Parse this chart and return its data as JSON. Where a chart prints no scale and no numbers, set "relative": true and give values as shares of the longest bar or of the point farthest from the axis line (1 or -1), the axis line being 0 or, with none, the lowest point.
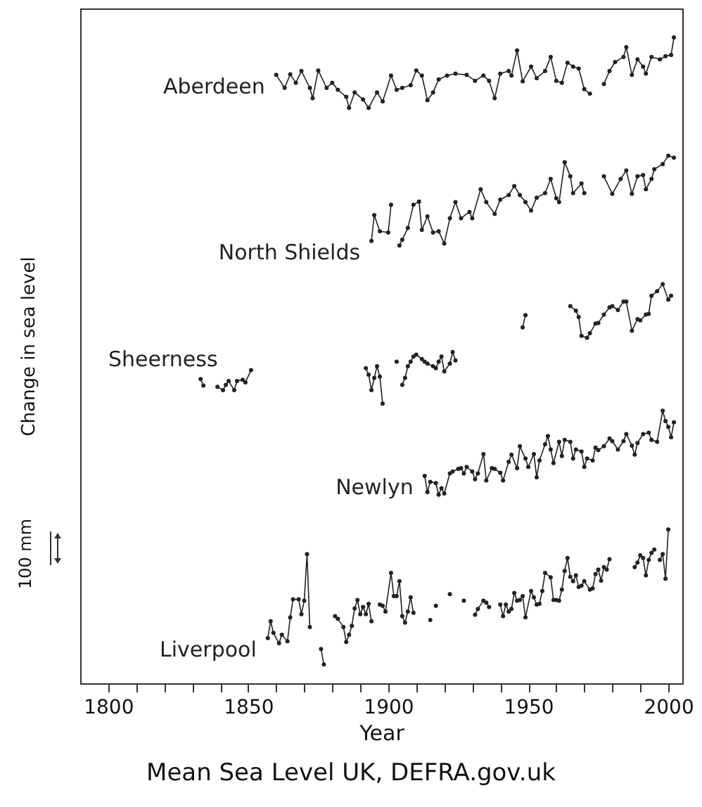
{
  "chart_data": {
    "type": "line",
    "relative": true,
    "xlabel": "Year",
    "ylabel": "Change in sea level",
    "annotations": [
      "100 mm",
      "Mean Sea Level UK, DEFRA.gov.uk"
    ],
    "xlim": [
      1790,
      2005
    ],
    "xticks": [
      1800,
      {
        "value": 1810,
        "label": null
      },
      {
        "value": 1820,
        "label": null
      },
      {
        "value": 1830,
        "label": null
      },
      {
        "value": 1840,
        "label": null
      },
      1850,
      {
        "value": 1860,
        "label": null
      },
      {
        "value": 1870,
        "label": null
      },
      {
        "value": 1880,
        "label": null
      },
      {
        "value": 1890,
        "label": null
      },
      1900,
      {
        "value": 1910,
        "label": null
      },
      {
        "value": 1920,
        "label": null
      },
      {
        "value": 1930,
        "label": null
      },
      {
        "value": 1940,
        "label": null
      },
      1950,
      {
        "value": 1960,
        "label": null
      },
      {
        "value": 1970,
        "label": null
      },
      {
        "value": 1980,
        "label": null
      },
      {
        "value": 1990,
        "label": null
      },
      2000
    ],
    "grid": false,
    "marker": "circle",
    "line_style": "solid",
    "series": [
      {
        "name": "Aberdeen",
        "color": "#222222",
        "x": [
          1860,
          1863,
          1865,
          1867,
          1869,
          1872,
          1873,
          1875,
          1878,
          1880,
          1882,
          1885,
          1886,
          1888,
          1891,
          1893,
          1896,
          1898,
          1901,
          1903,
          1905,
          1908,
          1910,
          1912,
          1914,
          1916,
          1918,
          1921,
          1924,
          1928,
          1931,
          1934,
          1936,
          1938,
          1940,
          1943,
          1944,
          1946,
          1948,
          1951,
          1953,
          1956,
          1958,
          1960,
          1962,
          1964,
          1966,
          1968,
          1970,
          1972,
          1976,
          1977,
          1979,
          1981,
          1984,
          1985,
          1987,
          1989,
          1991,
          1992,
          1994,
          1997,
          1999,
          2001,
          2002
        ],
        "values": [
          0.942,
          0.922,
          0.943,
          0.93,
          0.948,
          0.922,
          0.906,
          0.949,
          0.922,
          0.93,
          0.919,
          0.908,
          0.891,
          0.915,
          0.904,
          0.891,
          0.915,
          0.901,
          0.941,
          0.919,
          0.922,
          0.926,
          0.949,
          0.941,
          0.903,
          0.915,
          0.935,
          0.941,
          0.944,
          0.942,
          0.933,
          0.941,
          0.933,
          0.906,
          0.944,
          0.948,
          0.941,
          0.98,
          0.932,
          0.955,
          0.937,
          0.948,
          0.97,
          0.933,
          0.93,
          0.961,
          0.955,
          0.952,
          0.92,
          0.913,
          null,
          0.928,
          0.948,
          0.962,
          0.97,
          0.985,
          0.942,
          0.966,
          0.955,
          0.944,
          0.97,
          0.966,
          0.971,
          0.973,
          1
        ]
      },
      {
        "name": "North Shields",
        "color": "#222222",
        "x": [
          1894,
          1895,
          1897,
          1900,
          1901,
          1902,
          1904,
          1905,
          1907,
          1909,
          1911,
          1912,
          1914,
          1916,
          1918,
          1920,
          1922,
          1924,
          1926,
          1929,
          1930,
          1933,
          1935,
          1938,
          1940,
          1943,
          1945,
          1947,
          1949,
          1951,
          1953,
          1956,
          1958,
          1960,
          1961,
          1963,
          1965,
          1966,
          1969,
          1970,
          1975,
          1977,
          1980,
          1983,
          1985,
          1987,
          1989,
          1991,
          1992,
          1994,
          1995,
          1998,
          2000,
          2002
        ],
        "values": [
          0.685,
          0.725,
          0.7,
          0.698,
          0.741,
          null,
          0.678,
          0.687,
          0.705,
          0.741,
          0.746,
          0.702,
          0.723,
          0.698,
          0.7,
          0.681,
          0.72,
          0.745,
          0.72,
          0.73,
          0.72,
          0.765,
          0.745,
          0.727,
          0.749,
          0.756,
          0.77,
          0.756,
          0.745,
          0.732,
          0.752,
          0.759,
          0.781,
          0.751,
          0.745,
          0.807,
          0.785,
          0.759,
          0.774,
          0.759,
          null,
          0.785,
          0.758,
          0.781,
          0.794,
          0.758,
          0.785,
          0.787,
          0.765,
          0.781,
          0.796,
          0.804,
          0.817,
          0.814
        ]
      },
      {
        "name": "Sheerness",
        "color": "#222222",
        "x": [
          1833,
          1834,
          1836,
          1839,
          1841,
          1842,
          1843,
          1845,
          1846,
          1848,
          1849,
          1851,
          1870,
          1892,
          1893,
          1894,
          1895,
          1896,
          1897,
          1898,
          1900,
          1903,
          1904,
          1905,
          1906,
          1907,
          1908,
          1909,
          1910,
          1912,
          1913,
          1914,
          1916,
          1917,
          1918,
          1919,
          1920,
          1922,
          1923,
          1924,
          1940,
          1948,
          1949,
          1955,
          1965,
          1967,
          1968,
          1969,
          1971,
          1972,
          1974,
          1975,
          1977,
          1979,
          1980,
          1982,
          1984,
          1985,
          1987,
          1989,
          1990,
          1992,
          1993,
          1994,
          1996,
          1998,
          2000,
          2001
        ],
        "values": [
          0.471,
          0.461,
          null,
          0.459,
          0.454,
          0.462,
          0.468,
          0.454,
          0.468,
          0.47,
          0.466,
          0.485,
          null,
          0.488,
          0.478,
          0.454,
          0.473,
          0.491,
          0.475,
          0.433,
          null,
          0.498,
          null,
          0.462,
          0.473,
          0.491,
          0.498,
          0.506,
          0.509,
          0.502,
          0.498,
          0.495,
          0.491,
          0.488,
          0.498,
          0.506,
          0.483,
          0.495,
          0.513,
          0.5,
          null,
          0.551,
          0.57,
          null,
          0.584,
          0.577,
          0.567,
          0.538,
          0.535,
          0.542,
          0.557,
          0.558,
          0.571,
          0.582,
          0.584,
          0.578,
          0.591,
          0.591,
          0.546,
          0.564,
          0.562,
          0.571,
          0.572,
          0.6,
          0.607,
          0.618,
          0.594,
          0.6
        ]
      },
      {
        "name": "Newlyn",
        "color": "#222222",
        "x": [
          1913,
          1914,
          1915,
          1917,
          1918,
          1919,
          1920,
          1922,
          1923,
          1925,
          1926,
          1927,
          1928,
          1930,
          1931,
          1932,
          1934,
          1935,
          1937,
          1938,
          1940,
          1941,
          1943,
          1944,
          1946,
          1947,
          1949,
          1950,
          1952,
          1953,
          1954,
          1956,
          1957,
          1958,
          1959,
          1961,
          1962,
          1963,
          1965,
          1966,
          1967,
          1969,
          1970,
          1971,
          1973,
          1974,
          1975,
          1977,
          1979,
          1980,
          1982,
          1984,
          1985,
          1987,
          1988,
          1989,
          1991,
          1993,
          1994,
          1996,
          1998,
          1999,
          2000,
          2001,
          2002
        ],
        "values": [
          0.321,
          0.296,
          0.312,
          0.31,
          0.292,
          0.302,
          0.294,
          0.325,
          0.328,
          0.332,
          0.333,
          0.325,
          0.335,
          0.328,
          0.316,
          0.325,
          0.355,
          0.314,
          0.333,
          0.332,
          0.326,
          0.314,
          0.343,
          0.354,
          0.333,
          0.367,
          0.348,
          0.335,
          0.355,
          0.319,
          0.345,
          0.37,
          0.383,
          0.362,
          0.341,
          0.374,
          0.352,
          0.377,
          0.374,
          0.348,
          0.362,
          0.359,
          0.335,
          0.348,
          0.345,
          0.365,
          0.361,
          0.367,
          0.379,
          0.375,
          0.362,
          0.375,
          0.386,
          0.368,
          0.354,
          0.372,
          0.386,
          0.388,
          0.377,
          0.374,
          0.422,
          0.406,
          0.397,
          0.381,
          0.404
        ]
      },
      {
        "name": "Liverpool",
        "color": "#222222",
        "x": [
          1857,
          1858,
          1859,
          1861,
          1862,
          1864,
          1865,
          1866,
          1868,
          1869,
          1870,
          1871,
          1872,
          1875,
          1876,
          1877,
          1879,
          1881,
          1882,
          1884,
          1885,
          1886,
          1887,
          1888,
          1889,
          1890,
          1891,
          1892,
          1893,
          1894,
          1896,
          1897,
          1898,
          1899,
          1901,
          1902,
          1903,
          1904,
          1905,
          1906,
          1907,
          1908,
          1909,
          1912,
          1915,
          1916,
          1917,
          1919,
          1922,
          1924,
          1927,
          1929,
          1931,
          1932,
          1934,
          1935,
          1936,
          1939,
          1940,
          1941,
          1942,
          1943,
          1944,
          1945,
          1946,
          1947,
          1948,
          1949,
          1951,
          1952,
          1953,
          1954,
          1955,
          1956,
          1958,
          1959,
          1960,
          1961,
          1962,
          1963,
          1964,
          1965,
          1966,
          1967,
          1968,
          1969,
          1970,
          1972,
          1973,
          1974,
          1975,
          1976,
          1977,
          1978,
          1979,
          1985,
          1988,
          1989,
          1990,
          1991,
          1992,
          1993,
          1994,
          1995,
          1996,
          1997,
          1998,
          1999,
          2000
        ],
        "values": [
          0.07,
          0.096,
          0.078,
          0.062,
          0.075,
          0.065,
          0.102,
          0.13,
          0.13,
          0.107,
          0.128,
          0.2,
          0.087,
          null,
          0.053,
          0.029,
          null,
          0.104,
          0.1,
          0.087,
          0.064,
          0.075,
          0.089,
          0.116,
          0.129,
          0.107,
          0.118,
          0.107,
          0.123,
          0.096,
          null,
          0.122,
          0.12,
          0.111,
          0.171,
          0.135,
          0.135,
          0.158,
          0.104,
          0.094,
          0.111,
          0.133,
          0.109,
          null,
          0.098,
          null,
          0.12,
          null,
          0.138,
          null,
          0.128,
          null,
          0.106,
          0.115,
          0.128,
          0.125,
          0.118,
          null,
          0.122,
          0.104,
          0.122,
          0.111,
          0.115,
          0.14,
          0.128,
          0.129,
          0.135,
          0.102,
          0.143,
          0.133,
          0.122,
          0.123,
          0.143,
          0.171,
          0.164,
          0.129,
          0.129,
          0.128,
          0.145,
          0.174,
          0.194,
          0.165,
          0.158,
          0.167,
          0.149,
          0.151,
          0.158,
          0.145,
          0.147,
          0.169,
          0.176,
          0.159,
          0.18,
          0.176,
          0.192,
          null,
          0.18,
          0.187,
          0.198,
          0.194,
          0.167,
          0.191,
          0.202,
          0.207,
          null,
          0.191,
          0.2,
          0.162,
          0.238
        ]
      }
    ]
  }
}
